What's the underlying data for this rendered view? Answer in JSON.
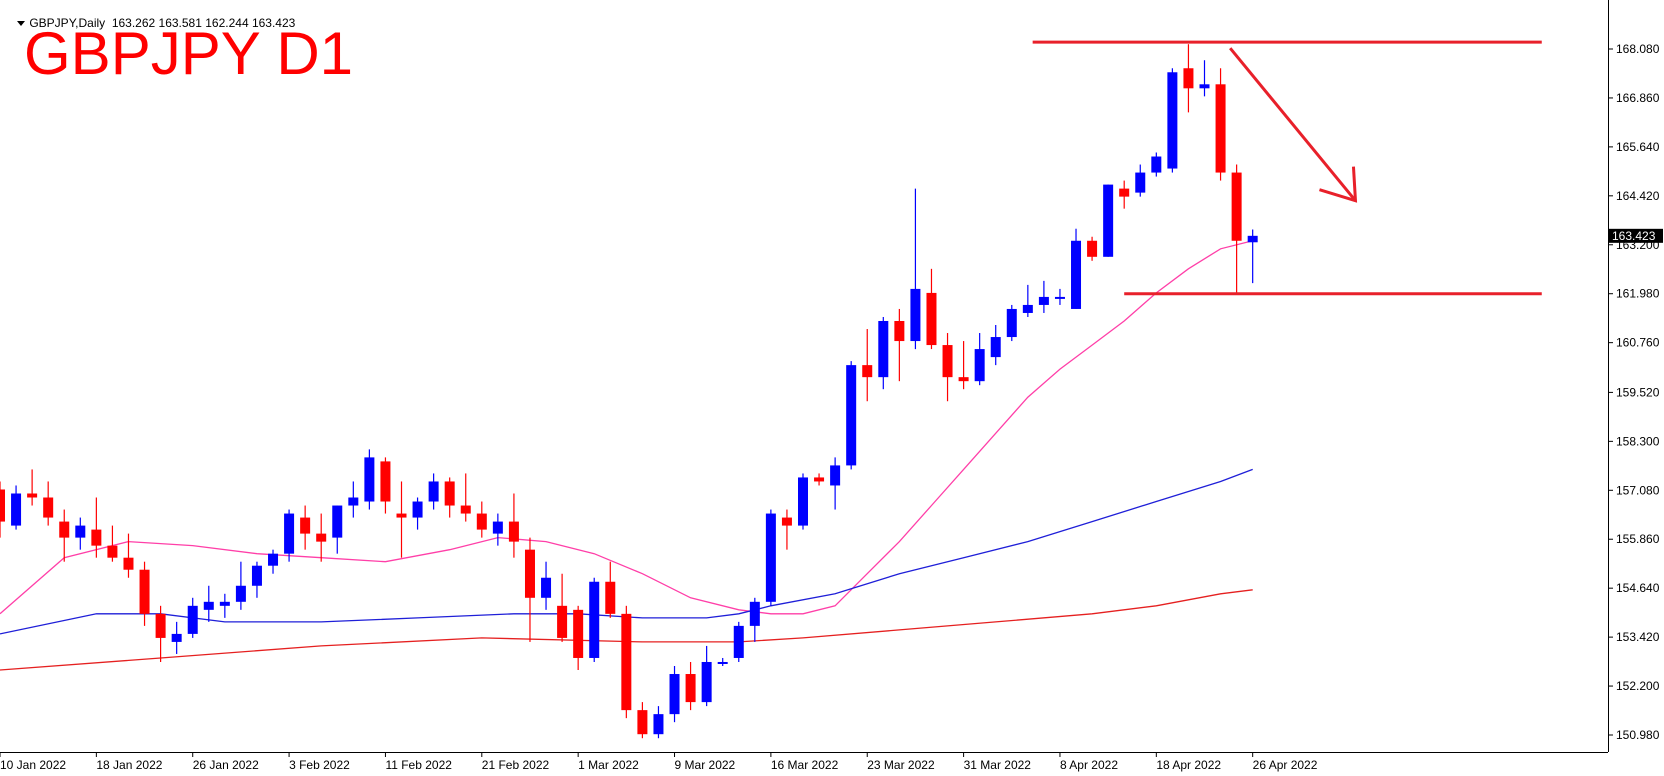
{
  "header": {
    "symbol_info": "GBPJPY,Daily  163.262 163.581 162.244 163.423",
    "overlay_title": "GBPJPY D1"
  },
  "colors": {
    "bull": "#0000ff",
    "bear": "#ff0000",
    "ma_fast": "#ff3fa8",
    "ma_mid": "#1f1fd8",
    "ma_slow": "#e52020",
    "annotation": "#e8202a",
    "text": "#000000"
  },
  "chart_data": {
    "type": "candlestick",
    "title": "GBPJPY D1",
    "y_ticks": [
      "168.080",
      "166.860",
      "165.640",
      "164.420",
      "163.200",
      "161.980",
      "160.760",
      "159.520",
      "158.300",
      "157.080",
      "155.860",
      "154.640",
      "153.420",
      "152.200",
      "150.980"
    ],
    "x_labels": [
      {
        "i": 0,
        "label": "10 Jan 2022"
      },
      {
        "i": 6,
        "label": "18 Jan 2022"
      },
      {
        "i": 12,
        "label": "26 Jan 2022"
      },
      {
        "i": 18,
        "label": "3 Feb 2022"
      },
      {
        "i": 24,
        "label": "11 Feb 2022"
      },
      {
        "i": 30,
        "label": "21 Feb 2022"
      },
      {
        "i": 36,
        "label": "1 Mar 2022"
      },
      {
        "i": 42,
        "label": "9 Mar 2022"
      },
      {
        "i": 48,
        "label": "16 Mar 2022"
      },
      {
        "i": 54,
        "label": "23 Mar 2022"
      },
      {
        "i": 60,
        "label": "31 Mar 2022"
      },
      {
        "i": 66,
        "label": "8 Apr 2022"
      },
      {
        "i": 72,
        "label": "18 Apr 2022"
      },
      {
        "i": 78,
        "label": "26 Apr 2022"
      }
    ],
    "current_price": "163.423",
    "ylim": [
      150.6,
      168.8
    ],
    "candles": [
      {
        "i": 0,
        "o": 157.1,
        "h": 157.3,
        "l": 155.9,
        "c": 156.3
      },
      {
        "i": 1,
        "o": 156.2,
        "h": 157.2,
        "l": 156.1,
        "c": 157.0
      },
      {
        "i": 2,
        "o": 157.0,
        "h": 157.6,
        "l": 156.7,
        "c": 156.9
      },
      {
        "i": 3,
        "o": 156.9,
        "h": 157.3,
        "l": 156.2,
        "c": 156.4
      },
      {
        "i": 4,
        "o": 156.3,
        "h": 156.6,
        "l": 155.3,
        "c": 155.9
      },
      {
        "i": 5,
        "o": 155.9,
        "h": 156.4,
        "l": 155.6,
        "c": 156.2
      },
      {
        "i": 6,
        "o": 156.1,
        "h": 156.9,
        "l": 155.4,
        "c": 155.7
      },
      {
        "i": 7,
        "o": 155.7,
        "h": 156.2,
        "l": 155.3,
        "c": 155.4
      },
      {
        "i": 8,
        "o": 155.4,
        "h": 156.0,
        "l": 154.9,
        "c": 155.1
      },
      {
        "i": 9,
        "o": 155.1,
        "h": 155.3,
        "l": 153.7,
        "c": 154.0
      },
      {
        "i": 10,
        "o": 154.0,
        "h": 154.2,
        "l": 152.8,
        "c": 153.4
      },
      {
        "i": 11,
        "o": 153.3,
        "h": 153.8,
        "l": 153.0,
        "c": 153.5
      },
      {
        "i": 12,
        "o": 153.5,
        "h": 154.4,
        "l": 153.4,
        "c": 154.2
      },
      {
        "i": 13,
        "o": 154.1,
        "h": 154.7,
        "l": 153.8,
        "c": 154.3
      },
      {
        "i": 14,
        "o": 154.2,
        "h": 154.5,
        "l": 153.9,
        "c": 154.3
      },
      {
        "i": 15,
        "o": 154.3,
        "h": 155.3,
        "l": 154.1,
        "c": 154.7
      },
      {
        "i": 16,
        "o": 154.7,
        "h": 155.3,
        "l": 154.4,
        "c": 155.2
      },
      {
        "i": 17,
        "o": 155.2,
        "h": 155.6,
        "l": 155.0,
        "c": 155.5
      },
      {
        "i": 18,
        "o": 155.5,
        "h": 156.6,
        "l": 155.3,
        "c": 156.5
      },
      {
        "i": 19,
        "o": 156.4,
        "h": 156.7,
        "l": 155.6,
        "c": 156.0
      },
      {
        "i": 20,
        "o": 156.0,
        "h": 156.5,
        "l": 155.3,
        "c": 155.8
      },
      {
        "i": 21,
        "o": 155.9,
        "h": 156.7,
        "l": 155.5,
        "c": 156.7
      },
      {
        "i": 22,
        "o": 156.7,
        "h": 157.3,
        "l": 156.4,
        "c": 156.9
      },
      {
        "i": 23,
        "o": 156.8,
        "h": 158.1,
        "l": 156.6,
        "c": 157.9
      },
      {
        "i": 24,
        "o": 157.8,
        "h": 157.9,
        "l": 156.5,
        "c": 156.8
      },
      {
        "i": 25,
        "o": 156.5,
        "h": 157.3,
        "l": 155.4,
        "c": 156.4
      },
      {
        "i": 26,
        "o": 156.4,
        "h": 156.9,
        "l": 156.1,
        "c": 156.8
      },
      {
        "i": 27,
        "o": 156.8,
        "h": 157.5,
        "l": 156.6,
        "c": 157.3
      },
      {
        "i": 28,
        "o": 157.3,
        "h": 157.4,
        "l": 156.4,
        "c": 156.7
      },
      {
        "i": 29,
        "o": 156.7,
        "h": 157.5,
        "l": 156.3,
        "c": 156.5
      },
      {
        "i": 30,
        "o": 156.5,
        "h": 156.8,
        "l": 155.9,
        "c": 156.1
      },
      {
        "i": 31,
        "o": 156.0,
        "h": 156.5,
        "l": 155.7,
        "c": 156.3
      },
      {
        "i": 32,
        "o": 156.3,
        "h": 157.0,
        "l": 155.4,
        "c": 155.8
      },
      {
        "i": 33,
        "o": 155.6,
        "h": 155.9,
        "l": 153.3,
        "c": 154.4
      },
      {
        "i": 34,
        "o": 154.4,
        "h": 155.3,
        "l": 154.1,
        "c": 154.9
      },
      {
        "i": 35,
        "o": 154.2,
        "h": 155.0,
        "l": 153.3,
        "c": 153.4
      },
      {
        "i": 36,
        "o": 154.1,
        "h": 154.2,
        "l": 152.6,
        "c": 152.9
      },
      {
        "i": 37,
        "o": 152.9,
        "h": 154.9,
        "l": 152.8,
        "c": 154.8
      },
      {
        "i": 38,
        "o": 154.8,
        "h": 155.3,
        "l": 153.9,
        "c": 154.0
      },
      {
        "i": 39,
        "o": 154.0,
        "h": 154.2,
        "l": 151.4,
        "c": 151.6
      },
      {
        "i": 40,
        "o": 151.6,
        "h": 151.8,
        "l": 150.9,
        "c": 151.0
      },
      {
        "i": 41,
        "o": 151.0,
        "h": 151.7,
        "l": 150.9,
        "c": 151.5
      },
      {
        "i": 42,
        "o": 151.5,
        "h": 152.7,
        "l": 151.3,
        "c": 152.5
      },
      {
        "i": 43,
        "o": 152.5,
        "h": 152.8,
        "l": 151.6,
        "c": 151.8
      },
      {
        "i": 44,
        "o": 151.8,
        "h": 153.2,
        "l": 151.7,
        "c": 152.8
      },
      {
        "i": 45,
        "o": 152.8,
        "h": 152.9,
        "l": 152.7,
        "c": 152.8
      },
      {
        "i": 46,
        "o": 152.9,
        "h": 153.8,
        "l": 152.8,
        "c": 153.7
      },
      {
        "i": 47,
        "o": 153.7,
        "h": 154.4,
        "l": 153.3,
        "c": 154.3
      },
      {
        "i": 48,
        "o": 154.3,
        "h": 156.6,
        "l": 154.2,
        "c": 156.5
      },
      {
        "i": 49,
        "o": 156.4,
        "h": 156.6,
        "l": 155.6,
        "c": 156.2
      },
      {
        "i": 50,
        "o": 156.2,
        "h": 157.5,
        "l": 156.1,
        "c": 157.4
      },
      {
        "i": 51,
        "o": 157.4,
        "h": 157.5,
        "l": 157.2,
        "c": 157.3
      },
      {
        "i": 52,
        "o": 157.2,
        "h": 157.9,
        "l": 156.6,
        "c": 157.7
      },
      {
        "i": 53,
        "o": 157.7,
        "h": 160.3,
        "l": 157.6,
        "c": 160.2
      },
      {
        "i": 54,
        "o": 160.2,
        "h": 161.1,
        "l": 159.3,
        "c": 159.9
      },
      {
        "i": 55,
        "o": 159.9,
        "h": 161.4,
        "l": 159.6,
        "c": 161.3
      },
      {
        "i": 56,
        "o": 161.3,
        "h": 161.6,
        "l": 159.8,
        "c": 160.8
      },
      {
        "i": 57,
        "o": 160.8,
        "h": 164.6,
        "l": 160.6,
        "c": 162.1
      },
      {
        "i": 58,
        "o": 162.0,
        "h": 162.6,
        "l": 160.6,
        "c": 160.7
      },
      {
        "i": 59,
        "o": 160.7,
        "h": 161.0,
        "l": 159.3,
        "c": 159.9
      },
      {
        "i": 60,
        "o": 159.9,
        "h": 160.8,
        "l": 159.6,
        "c": 159.8
      },
      {
        "i": 61,
        "o": 159.8,
        "h": 161.0,
        "l": 159.7,
        "c": 160.6
      },
      {
        "i": 62,
        "o": 160.4,
        "h": 161.2,
        "l": 160.2,
        "c": 160.9
      },
      {
        "i": 63,
        "o": 160.9,
        "h": 161.7,
        "l": 160.8,
        "c": 161.6
      },
      {
        "i": 64,
        "o": 161.5,
        "h": 162.2,
        "l": 161.4,
        "c": 161.7
      },
      {
        "i": 65,
        "o": 161.7,
        "h": 162.3,
        "l": 161.5,
        "c": 161.9
      },
      {
        "i": 66,
        "o": 161.9,
        "h": 162.1,
        "l": 161.7,
        "c": 161.9
      },
      {
        "i": 67,
        "o": 161.6,
        "h": 163.6,
        "l": 161.6,
        "c": 163.3
      },
      {
        "i": 68,
        "o": 163.3,
        "h": 163.4,
        "l": 162.8,
        "c": 162.9
      },
      {
        "i": 69,
        "o": 162.9,
        "h": 164.7,
        "l": 162.9,
        "c": 164.7
      },
      {
        "i": 70,
        "o": 164.6,
        "h": 164.8,
        "l": 164.1,
        "c": 164.4
      },
      {
        "i": 71,
        "o": 164.5,
        "h": 165.2,
        "l": 164.4,
        "c": 165.0
      },
      {
        "i": 72,
        "o": 165.0,
        "h": 165.5,
        "l": 164.9,
        "c": 165.4
      },
      {
        "i": 73,
        "o": 165.1,
        "h": 167.6,
        "l": 165.0,
        "c": 167.5
      },
      {
        "i": 74,
        "o": 167.6,
        "h": 168.2,
        "l": 166.5,
        "c": 167.1
      },
      {
        "i": 75,
        "o": 167.1,
        "h": 167.8,
        "l": 166.9,
        "c": 167.2
      },
      {
        "i": 76,
        "o": 167.2,
        "h": 167.6,
        "l": 164.8,
        "c": 165.0
      },
      {
        "i": 77,
        "o": 165.0,
        "h": 165.2,
        "l": 162.0,
        "c": 163.3
      },
      {
        "i": 78,
        "o": 163.262,
        "h": 163.581,
        "l": 162.244,
        "c": 163.423
      }
    ],
    "ma_fast": [
      [
        0,
        154.0
      ],
      [
        4,
        155.4
      ],
      [
        8,
        155.8
      ],
      [
        12,
        155.7
      ],
      [
        16,
        155.5
      ],
      [
        20,
        155.4
      ],
      [
        24,
        155.3
      ],
      [
        28,
        155.6
      ],
      [
        31,
        155.9
      ],
      [
        34,
        155.8
      ],
      [
        37,
        155.5
      ],
      [
        40,
        155.0
      ],
      [
        43,
        154.4
      ],
      [
        46,
        154.1
      ],
      [
        48,
        154.0
      ],
      [
        50,
        154.0
      ],
      [
        52,
        154.2
      ],
      [
        54,
        155.0
      ],
      [
        56,
        155.8
      ],
      [
        58,
        156.7
      ],
      [
        60,
        157.6
      ],
      [
        62,
        158.5
      ],
      [
        64,
        159.4
      ],
      [
        66,
        160.1
      ],
      [
        68,
        160.7
      ],
      [
        70,
        161.3
      ],
      [
        72,
        162.0
      ],
      [
        74,
        162.6
      ],
      [
        76,
        163.1
      ],
      [
        78,
        163.3
      ]
    ],
    "ma_mid": [
      [
        0,
        153.5
      ],
      [
        6,
        154.0
      ],
      [
        10,
        154.0
      ],
      [
        14,
        153.8
      ],
      [
        20,
        153.8
      ],
      [
        26,
        153.9
      ],
      [
        32,
        154.0
      ],
      [
        36,
        154.0
      ],
      [
        40,
        153.9
      ],
      [
        44,
        153.9
      ],
      [
        46,
        154.0
      ],
      [
        48,
        154.2
      ],
      [
        52,
        154.5
      ],
      [
        56,
        155.0
      ],
      [
        60,
        155.4
      ],
      [
        64,
        155.8
      ],
      [
        68,
        156.3
      ],
      [
        72,
        156.8
      ],
      [
        76,
        157.3
      ],
      [
        78,
        157.6
      ]
    ],
    "ma_slow": [
      [
        0,
        152.6
      ],
      [
        10,
        152.9
      ],
      [
        20,
        153.2
      ],
      [
        30,
        153.4
      ],
      [
        40,
        153.3
      ],
      [
        46,
        153.3
      ],
      [
        50,
        153.4
      ],
      [
        56,
        153.6
      ],
      [
        62,
        153.8
      ],
      [
        68,
        154.0
      ],
      [
        72,
        154.2
      ],
      [
        76,
        154.5
      ],
      [
        78,
        154.6
      ]
    ],
    "annotations": {
      "resistance": {
        "price": 168.25,
        "from_i": 64.3,
        "to_i": 96
      },
      "support": {
        "price": 161.98,
        "from_i": 70,
        "to_i": 96
      },
      "arrow": {
        "from": [
          76.6,
          168.1
        ],
        "to": [
          84.4,
          164.3
        ]
      }
    }
  }
}
